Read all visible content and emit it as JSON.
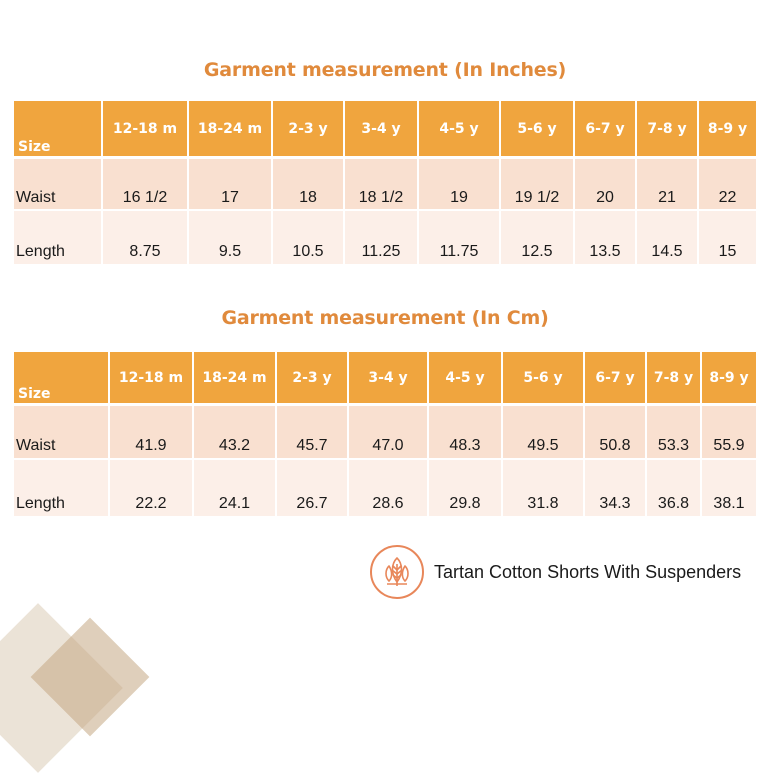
{
  "tables": [
    {
      "title": "Garment measurement (In Inches)",
      "size_label": "Size",
      "sizes": [
        "12-18 m",
        "18-24 m",
        "2-3 y",
        "3-4 y",
        "4-5 y",
        "5-6 y",
        "6-7 y",
        "7-8 y",
        "8-9 y"
      ],
      "rows": [
        {
          "label": "Waist",
          "values": [
            "16 1/2",
            "17",
            "18",
            "18 1/2",
            "19",
            "19 1/2",
            "20",
            "21",
            "22"
          ]
        },
        {
          "label": "Length",
          "values": [
            "8.75",
            "9.5",
            "10.5",
            "11.25",
            "11.75",
            "12.5",
            "13.5",
            "14.5",
            "15"
          ]
        }
      ]
    },
    {
      "title": "Garment measurement (In Cm)",
      "size_label": "Size",
      "sizes": [
        "12-18 m",
        "18-24 m",
        "2-3 y",
        "3-4 y",
        "4-5 y",
        "5-6 y",
        "6-7 y",
        "7-8 y",
        "8-9 y"
      ],
      "rows": [
        {
          "label": "Waist",
          "values": [
            "41.9",
            "43.2",
            "45.7",
            "47.0",
            "48.3",
            "49.5",
            "50.8",
            "53.3",
            "55.9"
          ]
        },
        {
          "label": "Length",
          "values": [
            "22.2",
            "24.1",
            "26.7",
            "28.6",
            "29.8",
            "31.8",
            "34.3",
            "36.8",
            "38.1"
          ]
        }
      ]
    }
  ],
  "brand": {
    "product_name": "Tartan Cotton Shorts With Suspenders",
    "logo_icon": "leaf-logo-icon"
  },
  "colors": {
    "accent": "#f0a53e",
    "title": "#e08a3c",
    "row_shade_dark": "#f9e0d0",
    "row_shade_light": "#fcefe8",
    "logo": "#e8875a"
  }
}
